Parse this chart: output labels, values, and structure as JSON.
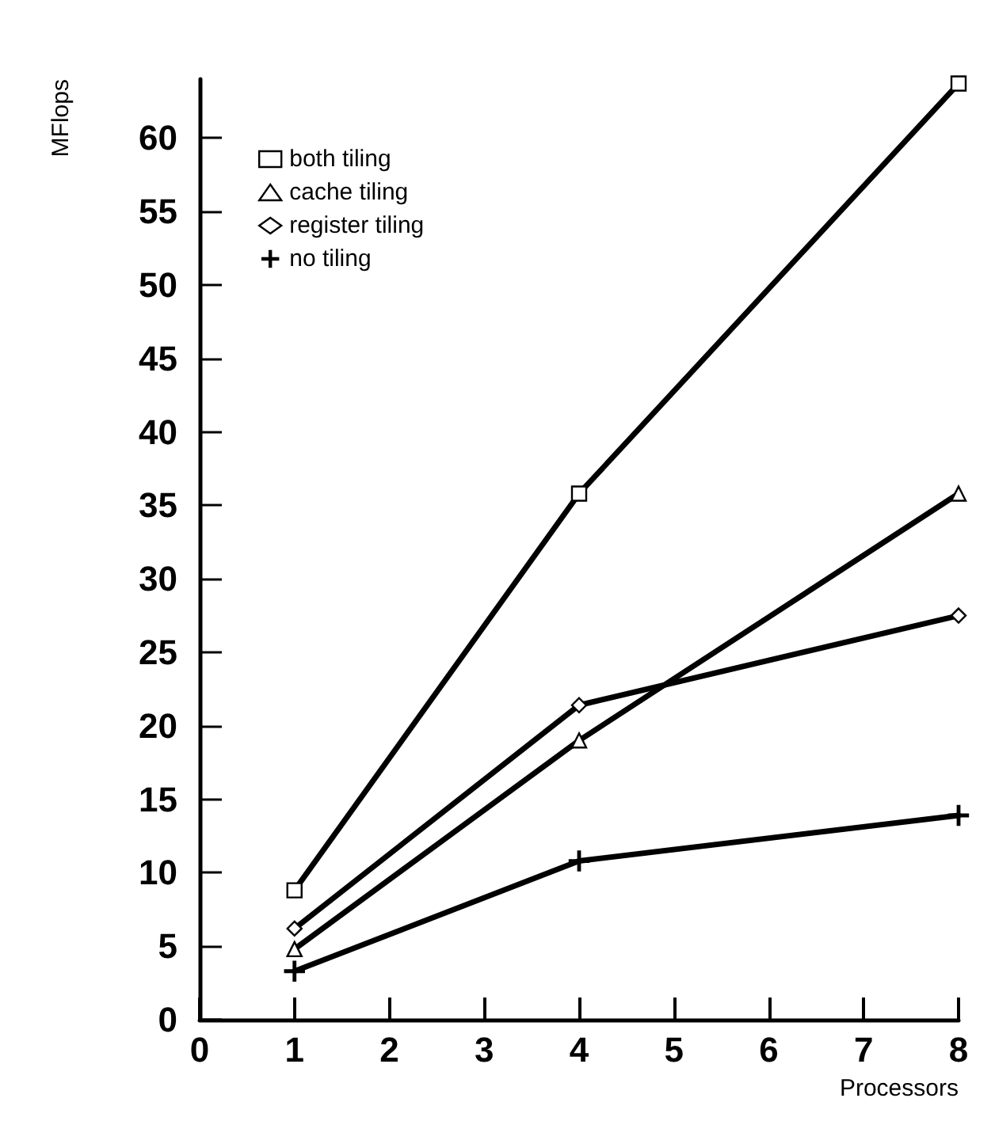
{
  "chart_data": {
    "type": "line",
    "xlabel": "Processors",
    "ylabel": "MFlops",
    "x": [
      1,
      4,
      8
    ],
    "xlim": [
      0,
      8
    ],
    "xticks": [
      0,
      1,
      2,
      3,
      4,
      5,
      6,
      7,
      8
    ],
    "ylim": [
      0,
      64
    ],
    "yticks": [
      0,
      5,
      10,
      15,
      20,
      25,
      30,
      35,
      40,
      45,
      50,
      55,
      60
    ],
    "grid": false,
    "legend": "top left",
    "line_style": "solid",
    "series": [
      {
        "name": "both tiling",
        "color": "#000000",
        "marker": "square",
        "values": [
          8.8,
          35.8,
          63.7
        ]
      },
      {
        "name": "cache tiling",
        "color": "#000000",
        "marker": "triangle",
        "values": [
          4.8,
          19,
          35.8
        ]
      },
      {
        "name": "register tiling",
        "color": "#000000",
        "marker": "diamond",
        "values": [
          6.2,
          21.4,
          27.5
        ]
      },
      {
        "name": "no tiling",
        "color": "#000000",
        "marker": "cross",
        "values": [
          3.3,
          10.8,
          13.9
        ]
      }
    ]
  }
}
